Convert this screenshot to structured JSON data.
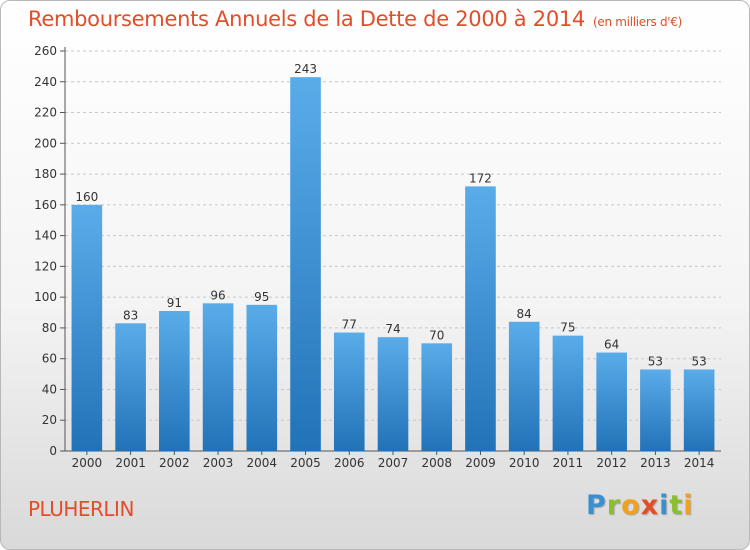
{
  "header": {
    "title": "Remboursements Annuels de la Dette de 2000 à 2014",
    "unit": "(en milliers d'€)"
  },
  "footer": {
    "commune": "PLUHERLIN",
    "logo_letters": [
      "P",
      "r",
      "o",
      "x",
      "i",
      "t",
      "i"
    ]
  },
  "colors": {
    "title": "#e24d2a",
    "bar_top": "#5aace9",
    "bar_bottom": "#2272b8"
  },
  "chart_data": {
    "type": "bar",
    "title": "Remboursements Annuels de la Dette de 2000 à 2014",
    "unit": "(en milliers d'€)",
    "categories": [
      "2000",
      "2001",
      "2002",
      "2003",
      "2004",
      "2005",
      "2006",
      "2007",
      "2008",
      "2009",
      "2010",
      "2011",
      "2012",
      "2013",
      "2014"
    ],
    "values": [
      160,
      83,
      91,
      96,
      95,
      243,
      77,
      74,
      70,
      172,
      84,
      75,
      64,
      53,
      53
    ],
    "ylim": [
      0,
      260
    ],
    "yticks": [
      0,
      20,
      40,
      60,
      80,
      100,
      120,
      140,
      160,
      180,
      200,
      220,
      240,
      260
    ],
    "grid": true,
    "legend": "none"
  }
}
